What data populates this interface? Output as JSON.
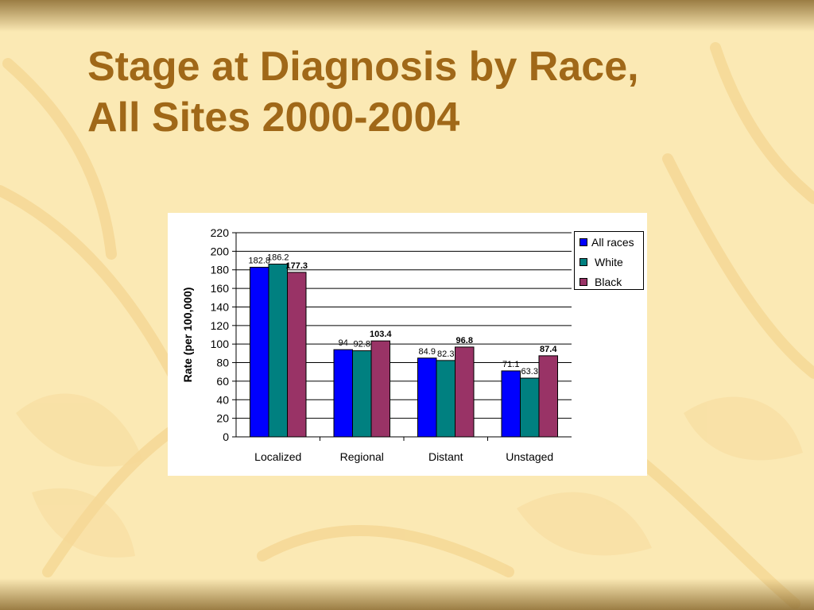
{
  "slide": {
    "title_line1": "Stage at Diagnosis by Race,",
    "title_line2": "All Sites 2000-2004"
  },
  "colors": {
    "title": "#a06818",
    "background": "#fbe9b4",
    "all_races": "#0000ff",
    "white": "#008080",
    "black": "#993366"
  },
  "chart_data": {
    "type": "bar",
    "title": "",
    "xlabel": "",
    "ylabel": "Rate (per 100,000)",
    "ylim": [
      0,
      220
    ],
    "yticks": [
      0,
      20,
      40,
      60,
      80,
      100,
      120,
      140,
      160,
      180,
      200,
      220
    ],
    "grid": true,
    "legend_position": "right",
    "categories": [
      "Localized",
      "Regional",
      "Distant",
      "Unstaged"
    ],
    "series": [
      {
        "name": "All races",
        "color": "#0000ff",
        "values": [
          182.8,
          94,
          84.9,
          71.1
        ],
        "labels": [
          "182.8",
          "94",
          "84.9",
          "71.1"
        ],
        "label_bold": false
      },
      {
        "name": "White",
        "color": "#008080",
        "values": [
          186.2,
          92.8,
          82.3,
          63.3
        ],
        "labels": [
          "186.2",
          "92.8",
          "82.3",
          "63.3"
        ],
        "label_bold": false
      },
      {
        "name": "Black",
        "color": "#993366",
        "values": [
          177.3,
          103.4,
          96.8,
          87.4
        ],
        "labels": [
          "177.3",
          "103.4",
          "96.8",
          "87.4"
        ],
        "label_bold": true
      }
    ]
  }
}
